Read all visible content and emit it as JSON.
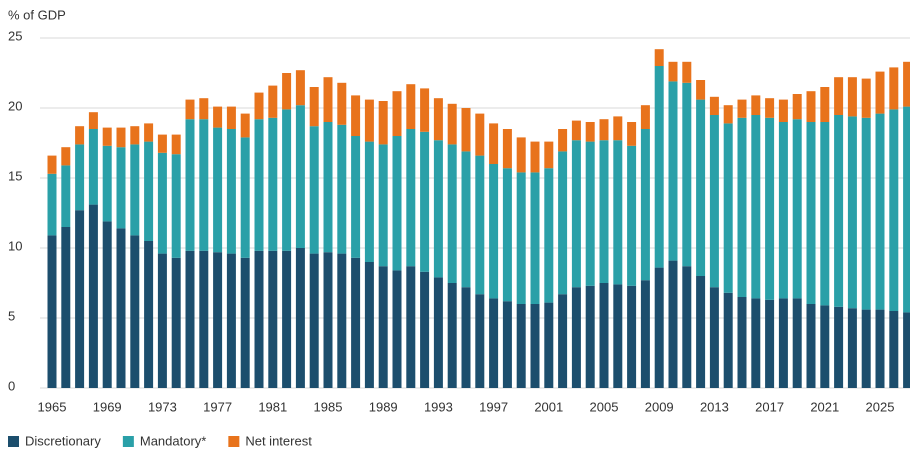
{
  "chart_data": {
    "type": "stacked_bar",
    "y_label": "% of GDP",
    "categories": [
      "1965",
      null,
      null,
      null,
      "1969",
      null,
      null,
      null,
      "1973",
      null,
      null,
      null,
      "1977",
      null,
      null,
      null,
      "1981",
      null,
      null,
      null,
      "1985",
      null,
      null,
      null,
      "1989",
      null,
      null,
      null,
      "1993",
      null,
      null,
      null,
      "1997",
      null,
      null,
      null,
      "2001",
      null,
      null,
      null,
      "2005",
      null,
      null,
      null,
      "2009",
      null,
      null,
      null,
      "2013",
      null,
      null,
      null,
      "2017",
      null,
      null,
      null,
      "2021",
      null,
      null,
      null,
      "2025",
      null,
      null
    ],
    "series": [
      {
        "name": "Discretionary",
        "color": "#1c4e6d",
        "values": [
          10.9,
          11.5,
          12.7,
          13.1,
          11.9,
          11.4,
          10.9,
          10.5,
          9.6,
          9.3,
          9.8,
          9.8,
          9.7,
          9.6,
          9.3,
          9.8,
          9.8,
          9.8,
          10.0,
          9.6,
          9.7,
          9.6,
          9.3,
          9.0,
          8.7,
          8.4,
          8.7,
          8.3,
          7.9,
          7.5,
          7.2,
          6.7,
          6.4,
          6.2,
          6.0,
          6.0,
          6.1,
          6.7,
          7.2,
          7.3,
          7.5,
          7.4,
          7.3,
          7.7,
          8.6,
          9.1,
          8.7,
          8.0,
          7.2,
          6.8,
          6.5,
          6.4,
          6.3,
          6.4,
          6.4,
          6.0,
          5.9,
          5.8,
          5.7,
          5.6,
          5.6,
          5.5,
          5.4
        ]
      },
      {
        "name": "Mandatory*",
        "color": "#2aa0a8",
        "values": [
          4.4,
          4.4,
          4.7,
          5.4,
          5.4,
          5.8,
          6.5,
          7.1,
          7.2,
          7.4,
          9.4,
          9.4,
          8.9,
          8.9,
          8.6,
          9.4,
          9.5,
          10.1,
          10.2,
          9.1,
          9.3,
          9.2,
          8.7,
          8.6,
          8.7,
          9.6,
          9.8,
          10.0,
          9.8,
          9.9,
          9.7,
          9.9,
          9.6,
          9.5,
          9.4,
          9.4,
          9.6,
          10.2,
          10.5,
          10.3,
          10.2,
          10.3,
          10.0,
          10.8,
          14.4,
          12.8,
          13.1,
          12.6,
          12.3,
          12.1,
          12.8,
          13.1,
          13.0,
          12.6,
          12.8,
          13.0,
          13.1,
          13.7,
          13.7,
          13.7,
          14.0,
          14.4,
          14.7
        ]
      },
      {
        "name": "Net interest",
        "color": "#e8731c",
        "values": [
          1.3,
          1.3,
          1.3,
          1.2,
          1.3,
          1.4,
          1.3,
          1.3,
          1.3,
          1.4,
          1.4,
          1.5,
          1.5,
          1.6,
          1.7,
          1.9,
          2.3,
          2.6,
          2.5,
          2.8,
          3.2,
          3.0,
          2.9,
          3.0,
          3.1,
          3.2,
          3.2,
          3.1,
          3.0,
          2.9,
          3.1,
          3.0,
          2.9,
          2.8,
          2.5,
          2.2,
          1.9,
          1.6,
          1.4,
          1.4,
          1.5,
          1.7,
          1.7,
          1.7,
          1.2,
          1.4,
          1.5,
          1.4,
          1.3,
          1.3,
          1.3,
          1.4,
          1.4,
          1.6,
          1.8,
          2.2,
          2.5,
          2.7,
          2.8,
          2.8,
          3.0,
          3.0,
          3.2
        ]
      }
    ],
    "ylim": [
      0,
      25
    ],
    "yticks": [
      0,
      5,
      10,
      15,
      20,
      25
    ],
    "grid": true,
    "legend": "bottom"
  }
}
